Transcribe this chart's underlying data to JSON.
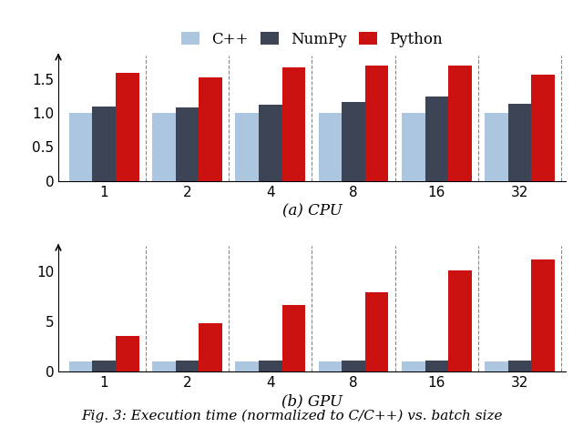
{
  "categories": [
    "1",
    "2",
    "4",
    "8",
    "16",
    "32"
  ],
  "cpu": {
    "cpp": [
      1.0,
      1.0,
      1.0,
      1.0,
      1.0,
      1.0
    ],
    "numpy": [
      1.1,
      1.09,
      1.13,
      1.16,
      1.24,
      1.14
    ],
    "python": [
      1.6,
      1.53,
      1.68,
      1.7,
      1.7,
      1.57
    ]
  },
  "gpu": {
    "cpp": [
      1.0,
      1.0,
      1.0,
      1.0,
      1.0,
      1.0
    ],
    "numpy": [
      1.05,
      1.05,
      1.1,
      1.1,
      1.1,
      1.1
    ],
    "python": [
      3.5,
      4.8,
      6.6,
      7.9,
      10.1,
      11.2
    ]
  },
  "colors": {
    "cpp": "#adc6e0",
    "numpy": "#3d4455",
    "python": "#cc1111"
  },
  "cpu_label": "(a) CPU",
  "gpu_label": "(b) GPU",
  "cpu_ylim": [
    0,
    1.85
  ],
  "gpu_ylim": [
    0,
    12.5
  ],
  "cpu_yticks": [
    0,
    0.5,
    1.0,
    1.5
  ],
  "gpu_yticks": [
    0,
    5,
    10
  ],
  "fig_caption": "Fig. 3: Execution time (normalized to C/C++) vs. batch size",
  "bar_width": 0.28,
  "tick_fontsize": 11,
  "label_fontsize": 12,
  "caption_fontsize": 11
}
